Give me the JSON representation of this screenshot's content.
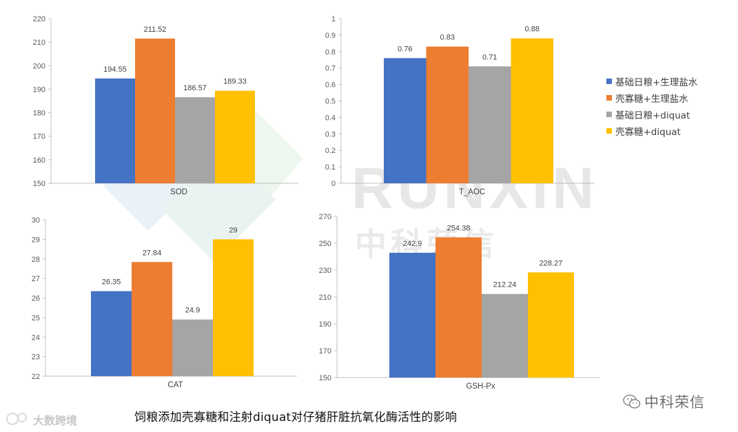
{
  "series_colors": [
    "#4472C4",
    "#ED7D31",
    "#A5A5A5",
    "#FFC000"
  ],
  "legend": [
    "基础日粮+生理盐水",
    "壳寡糖+生理盐水",
    "基础日粮+diquat",
    "壳寡糖+diquat"
  ],
  "caption": "饲粮添加壳寡糖和注射diquat对仔猪肝脏抗氧化酶活性的影响",
  "watermark": {
    "main": "RUNXIN",
    "sub": "中科荣信",
    "brand": "中科荣信",
    "left_text": "大数跨境"
  },
  "chart_data": [
    {
      "type": "bar",
      "xlabel": "SOD",
      "ylim": [
        150,
        220
      ],
      "yticks": [
        "150",
        "160",
        "170",
        "180",
        "190",
        "200",
        "210",
        "220"
      ],
      "values": [
        194.55,
        211.52,
        186.57,
        189.33
      ],
      "labels": [
        "194.55",
        "211.52",
        "186.57",
        "189.33"
      ]
    },
    {
      "type": "bar",
      "xlabel": "T_AOC",
      "ylim": [
        0,
        1
      ],
      "yticks": [
        "0",
        "0.1",
        "0.2",
        "0.3",
        "0.4",
        "0.5",
        "0.6",
        "0.7",
        "0.8",
        "0.9",
        "1"
      ],
      "values": [
        0.76,
        0.83,
        0.71,
        0.88
      ],
      "labels": [
        "0.76",
        "0.83",
        "0.71",
        "0.88"
      ]
    },
    {
      "type": "bar",
      "xlabel": "CAT",
      "ylim": [
        22,
        30
      ],
      "yticks": [
        "22",
        "23",
        "24",
        "25",
        "26",
        "27",
        "28",
        "29",
        "30"
      ],
      "values": [
        26.35,
        27.84,
        24.9,
        29
      ],
      "labels": [
        "26.35",
        "27.84",
        "24.9",
        "29"
      ]
    },
    {
      "type": "bar",
      "xlabel": "GSH-Px",
      "ylim": [
        150,
        270
      ],
      "yticks": [
        "150",
        "170",
        "190",
        "210",
        "230",
        "250",
        "270"
      ],
      "values": [
        242.9,
        254.38,
        212.24,
        228.27
      ],
      "labels": [
        "242.9",
        "254.38",
        "212.24",
        "228.27"
      ]
    }
  ]
}
